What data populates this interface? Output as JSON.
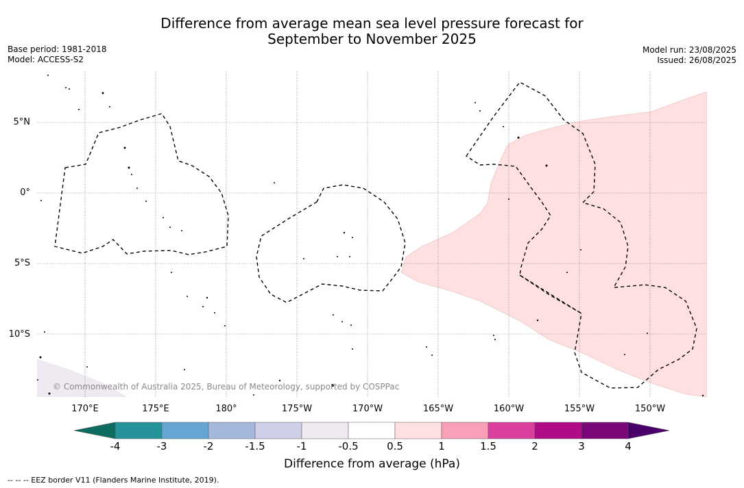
{
  "title": {
    "line1": "Difference from average mean sea level pressure forecast for",
    "line2": "September to November 2025"
  },
  "meta": {
    "base_period": "Base period: 1981-2018",
    "model": "Model: ACCESS-S2",
    "model_run": "Model run: 23/08/2025",
    "issued": "Issued: 26/08/2025"
  },
  "map": {
    "lat_ticks": [
      "5°N",
      "0°",
      "5°S",
      "10°S"
    ],
    "lon_ticks": [
      "170°E",
      "175°E",
      "180°",
      "175°W",
      "170°W",
      "165°W",
      "160°W",
      "155°W",
      "150°W"
    ],
    "copyright": "© Commonwealth of Australia 2025, Bureau of Meteorology, supported by COSPPac"
  },
  "colorbar": {
    "title": "Difference from average (hPa)",
    "labels": [
      "-4",
      "-3",
      "-2",
      "-1.5",
      "-1",
      "-0.5",
      "0.5",
      "1",
      "1.5",
      "2",
      "3",
      "4"
    ],
    "colors": {
      "below_-4": "#0e6b5f",
      "-4_-3": "#24939b",
      "-3_-2": "#64a6d1",
      "-2_-1.5": "#a5b8dc",
      "-1.5_-1": "#cdd0e6",
      "-1_-0.5": "#efe9f1",
      "-0.5_0.5": "#ffffff",
      "0.5_1": "#fde0df",
      "1_1.5": "#f9a0b8",
      "1.5_2": "#dd3f9f",
      "2_3": "#af0c85",
      "3_4": "#7a0777",
      "above_4": "#4a006a"
    }
  },
  "footnote": "--  --  -- EEZ border V11 (Flanders Marine Institute, 2019)."
}
